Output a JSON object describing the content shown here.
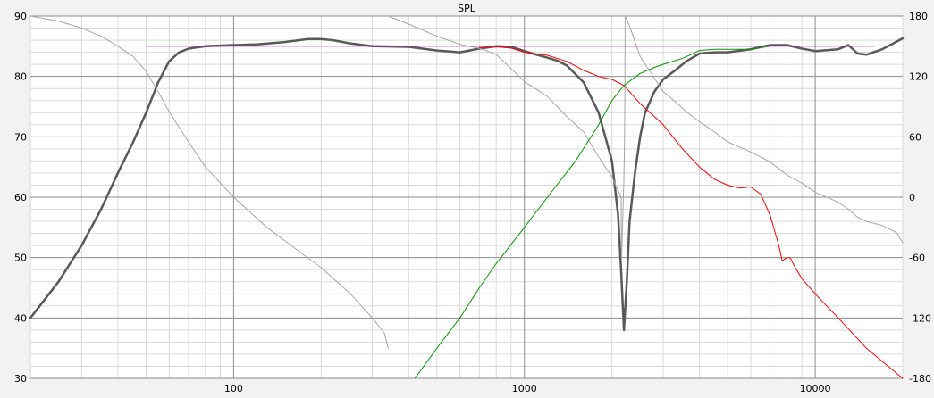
{
  "chart_data": {
    "type": "line",
    "title": "SPL",
    "x_scale": "log",
    "xlim": [
      20,
      20000
    ],
    "ylim_left": [
      30,
      90
    ],
    "ylim_right": [
      -180,
      180
    ],
    "grid": true,
    "x_ticks": [
      100,
      1000,
      10000
    ],
    "x_tick_labels": [
      "100",
      "1000",
      "10000"
    ],
    "y_ticks_left": [
      30,
      40,
      50,
      60,
      70,
      80,
      90
    ],
    "y_ticks_right": [
      -180,
      -120,
      -60,
      0,
      60,
      120,
      180
    ],
    "colors": {
      "bg": "#ffffff",
      "grid_major": "#8c8c8c",
      "grid_minor": "#d9d9d9",
      "sum": "#595959",
      "phase": "#a6a6a6",
      "woofer": "#ff0000",
      "tweeter": "#009900",
      "target": "#cc00cc"
    },
    "series": [
      {
        "id": "sum",
        "axis": "left",
        "color": "#595959",
        "width": 2.5,
        "points": [
          [
            20,
            40
          ],
          [
            25,
            46
          ],
          [
            30,
            52
          ],
          [
            35,
            58
          ],
          [
            40,
            64
          ],
          [
            45,
            69
          ],
          [
            50,
            74
          ],
          [
            55,
            79
          ],
          [
            60,
            82.5
          ],
          [
            65,
            84
          ],
          [
            70,
            84.6
          ],
          [
            80,
            85
          ],
          [
            100,
            85.2
          ],
          [
            120,
            85.3
          ],
          [
            150,
            85.7
          ],
          [
            180,
            86.2
          ],
          [
            200,
            86.2
          ],
          [
            220,
            86
          ],
          [
            250,
            85.5
          ],
          [
            300,
            85
          ],
          [
            400,
            84.9
          ],
          [
            500,
            84.3
          ],
          [
            600,
            84
          ],
          [
            700,
            84.6
          ],
          [
            800,
            85
          ],
          [
            900,
            84.9
          ],
          [
            1000,
            84.2
          ],
          [
            1100,
            83.6
          ],
          [
            1200,
            83.1
          ],
          [
            1300,
            82.6
          ],
          [
            1400,
            81.8
          ],
          [
            1600,
            79
          ],
          [
            1800,
            74
          ],
          [
            2000,
            66
          ],
          [
            2100,
            57
          ],
          [
            2150,
            48
          ],
          [
            2200,
            38
          ],
          [
            2250,
            46
          ],
          [
            2300,
            56
          ],
          [
            2400,
            64
          ],
          [
            2500,
            70
          ],
          [
            2600,
            74
          ],
          [
            2800,
            77.5
          ],
          [
            3000,
            79.5
          ],
          [
            3300,
            81
          ],
          [
            3600,
            82.5
          ],
          [
            4000,
            83.8
          ],
          [
            4500,
            84
          ],
          [
            5000,
            84
          ],
          [
            6000,
            84.5
          ],
          [
            7000,
            85.2
          ],
          [
            8000,
            85.2
          ],
          [
            9000,
            84.6
          ],
          [
            10000,
            84.2
          ],
          [
            12000,
            84.5
          ],
          [
            13000,
            85.2
          ],
          [
            14000,
            83.8
          ],
          [
            15000,
            83.6
          ],
          [
            17000,
            84.5
          ],
          [
            20000,
            86.3
          ]
        ]
      },
      {
        "id": "phase-1",
        "axis": "right",
        "color": "#a6a6a6",
        "width": 1,
        "points": [
          [
            20,
            180
          ],
          [
            25,
            175
          ],
          [
            30,
            168
          ],
          [
            35,
            160
          ],
          [
            40,
            150
          ],
          [
            45,
            140
          ],
          [
            50,
            125
          ],
          [
            55,
            105
          ],
          [
            60,
            85
          ],
          [
            70,
            55
          ],
          [
            80,
            30
          ],
          [
            100,
            0
          ],
          [
            130,
            -30
          ],
          [
            170,
            -55
          ],
          [
            200,
            -70
          ],
          [
            250,
            -95
          ],
          [
            300,
            -120
          ],
          [
            330,
            -135
          ],
          [
            340,
            -150
          ]
        ]
      },
      {
        "id": "phase-2",
        "axis": "right",
        "color": "#a6a6a6",
        "width": 1,
        "points": [
          [
            340,
            180
          ],
          [
            400,
            172
          ],
          [
            500,
            160
          ],
          [
            600,
            152
          ],
          [
            700,
            148
          ],
          [
            800,
            142
          ],
          [
            1000,
            115
          ],
          [
            1200,
            100
          ],
          [
            1400,
            80
          ],
          [
            1600,
            65
          ],
          [
            1800,
            40
          ],
          [
            2000,
            20
          ],
          [
            2150,
            0
          ],
          [
            2160,
            -60
          ],
          [
            2180,
            -20
          ],
          [
            2200,
            20
          ],
          [
            2210,
            60
          ],
          [
            2215,
            100
          ],
          [
            2220,
            180
          ],
          [
            2300,
            170
          ],
          [
            2500,
            140
          ],
          [
            2800,
            118
          ],
          [
            3000,
            105
          ],
          [
            3300,
            95
          ],
          [
            3600,
            85
          ],
          [
            4000,
            75
          ],
          [
            4500,
            65
          ],
          [
            5000,
            55
          ],
          [
            6000,
            45
          ],
          [
            7000,
            35
          ],
          [
            8000,
            22
          ],
          [
            9000,
            14
          ],
          [
            10000,
            5
          ],
          [
            12000,
            -5
          ],
          [
            13000,
            -12
          ],
          [
            14000,
            -20
          ],
          [
            15000,
            -24
          ],
          [
            17000,
            -28
          ],
          [
            19000,
            -35
          ],
          [
            20000,
            -45
          ]
        ]
      },
      {
        "id": "woofer",
        "axis": "left",
        "color": "#ff0000",
        "width": 1,
        "points": [
          [
            700,
            84.8
          ],
          [
            800,
            84.9
          ],
          [
            900,
            84.7
          ],
          [
            1000,
            84
          ],
          [
            1200,
            83.5
          ],
          [
            1400,
            82.5
          ],
          [
            1600,
            81
          ],
          [
            1800,
            80
          ],
          [
            2000,
            79.5
          ],
          [
            2200,
            78.5
          ],
          [
            2500,
            75.5
          ],
          [
            3000,
            72
          ],
          [
            3500,
            68
          ],
          [
            4000,
            65
          ],
          [
            4500,
            63
          ],
          [
            5000,
            62
          ],
          [
            5500,
            61.5
          ],
          [
            6000,
            61.7
          ],
          [
            6500,
            60.5
          ],
          [
            7000,
            57
          ],
          [
            7500,
            52
          ],
          [
            7700,
            49.5
          ],
          [
            8000,
            50
          ],
          [
            8200,
            50
          ],
          [
            8500,
            48.5
          ],
          [
            9000,
            46.5
          ],
          [
            10000,
            44
          ],
          [
            12000,
            40
          ],
          [
            15000,
            35
          ],
          [
            20000,
            30
          ]
        ]
      },
      {
        "id": "tweeter",
        "axis": "left",
        "color": "#009900",
        "width": 1,
        "points": [
          [
            420,
            30
          ],
          [
            500,
            35
          ],
          [
            600,
            40
          ],
          [
            700,
            45
          ],
          [
            800,
            49
          ],
          [
            1000,
            55
          ],
          [
            1200,
            60
          ],
          [
            1500,
            66
          ],
          [
            1800,
            72
          ],
          [
            2000,
            76
          ],
          [
            2200,
            78.5
          ],
          [
            2500,
            80.5
          ],
          [
            2800,
            81.5
          ],
          [
            3000,
            82
          ],
          [
            3500,
            83
          ],
          [
            4000,
            84.3
          ],
          [
            4500,
            84.5
          ],
          [
            5000,
            84.5
          ],
          [
            6000,
            84.5
          ],
          [
            7000,
            85
          ]
        ]
      },
      {
        "id": "target",
        "axis": "left",
        "color": "#cc00cc",
        "width": 1,
        "points": [
          [
            50,
            85
          ],
          [
            16000,
            85
          ]
        ]
      }
    ]
  }
}
